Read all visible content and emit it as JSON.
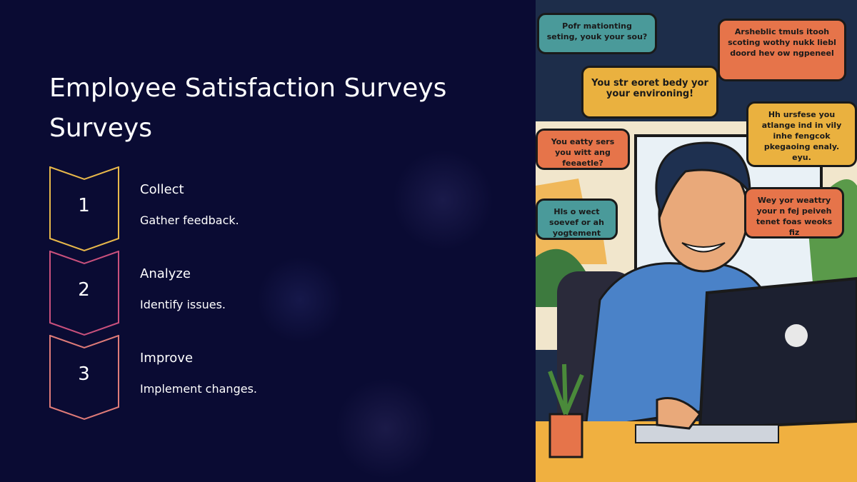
{
  "slide": {
    "title": "Employee Satisfaction Surveys Surveys",
    "steps": [
      {
        "number": "1",
        "heading": "Collect",
        "description": "Gather feedback.",
        "color": "#e8b84a"
      },
      {
        "number": "2",
        "heading": "Analyze",
        "description": "Identify issues.",
        "color": "#c9507c"
      },
      {
        "number": "3",
        "heading": "Improve",
        "description": "Implement changes.",
        "color": "#df7b78"
      }
    ]
  },
  "illustration": {
    "bubbles": [
      {
        "text": "Pofr mationting seting, youk your sou?",
        "color": "#4a9a9a"
      },
      {
        "text": "You str eoret bedy yor your environing!",
        "color": "#eab13f"
      },
      {
        "text": "Arsheblic tmuls itooh scoting wothy nukk liebl doord hev ow ngpeneel",
        "color": "#e6744a"
      },
      {
        "text": "You eatty sers you witt ang feeaetle?",
        "color": "#e6744a"
      },
      {
        "text": "Hh ursfese you atlange ind in vily inhe fengcok pkegaoing enaly. eyu.",
        "color": "#eab13f"
      },
      {
        "text": "Hls o wect soevef or ah yogtement",
        "color": "#4a9a9a"
      },
      {
        "text": "Wey yor weattry your n fej peiveh tenet foas weoks fiz",
        "color": "#e6744a"
      }
    ]
  }
}
